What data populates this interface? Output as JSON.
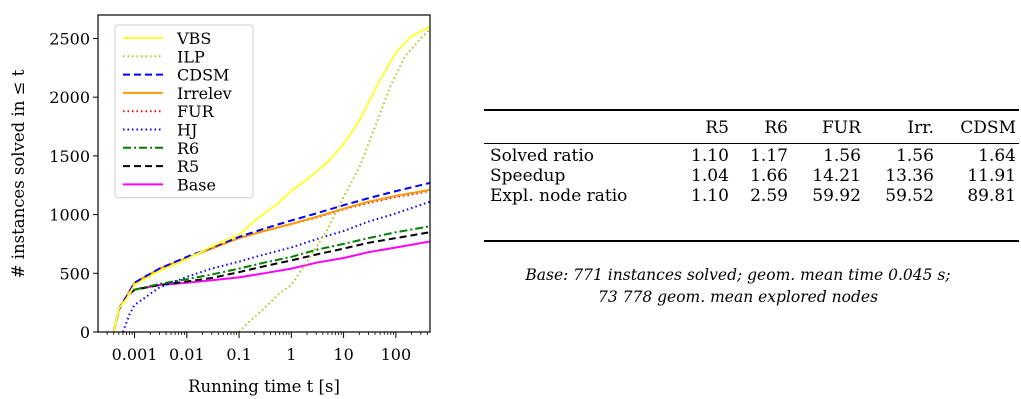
{
  "chart_data": {
    "type": "line",
    "xlabel": "Running time t [s]",
    "ylabel": "# instances solved in ≤ t",
    "xscale": "log",
    "xlim": [
      0.0002,
      450
    ],
    "ylim": [
      0,
      2700
    ],
    "xticks": [
      {
        "value": 0.001,
        "label": "0.001"
      },
      {
        "value": 0.01,
        "label": "0.01"
      },
      {
        "value": 0.1,
        "label": "0.1"
      },
      {
        "value": 1,
        "label": "1"
      },
      {
        "value": 10,
        "label": "10"
      },
      {
        "value": 100,
        "label": "100"
      }
    ],
    "yticks": [
      0,
      500,
      1000,
      1500,
      2000,
      2500
    ],
    "legend_position": "top-left",
    "series": [
      {
        "name": "VBS",
        "color": "#ffff33",
        "dash": "solid",
        "points": [
          [
            0.0004,
            0
          ],
          [
            0.0005,
            200
          ],
          [
            0.0007,
            280
          ],
          [
            0.001,
            400
          ],
          [
            0.003,
            520
          ],
          [
            0.01,
            620
          ],
          [
            0.03,
            730
          ],
          [
            0.1,
            830
          ],
          [
            0.2,
            950
          ],
          [
            0.5,
            1080
          ],
          [
            1,
            1200
          ],
          [
            2,
            1300
          ],
          [
            5,
            1450
          ],
          [
            10,
            1600
          ],
          [
            20,
            1800
          ],
          [
            50,
            2150
          ],
          [
            100,
            2380
          ],
          [
            200,
            2520
          ],
          [
            450,
            2600
          ]
        ]
      },
      {
        "name": "ILP",
        "color": "#bcbd22",
        "dash": "dotted",
        "points": [
          [
            0.1,
            0
          ],
          [
            0.15,
            80
          ],
          [
            0.3,
            200
          ],
          [
            0.6,
            330
          ],
          [
            1,
            400
          ],
          [
            2,
            600
          ],
          [
            5,
            880
          ],
          [
            10,
            1150
          ],
          [
            20,
            1400
          ],
          [
            40,
            1750
          ],
          [
            80,
            2100
          ],
          [
            150,
            2350
          ],
          [
            300,
            2500
          ],
          [
            450,
            2580
          ]
        ]
      },
      {
        "name": "CDSM",
        "color": "#0000ff",
        "dash": "dashed",
        "points": [
          [
            0.0004,
            0
          ],
          [
            0.0005,
            200
          ],
          [
            0.0007,
            300
          ],
          [
            0.001,
            420
          ],
          [
            0.003,
            540
          ],
          [
            0.01,
            640
          ],
          [
            0.03,
            720
          ],
          [
            0.1,
            810
          ],
          [
            0.3,
            880
          ],
          [
            1,
            950
          ],
          [
            3,
            1010
          ],
          [
            10,
            1080
          ],
          [
            30,
            1140
          ],
          [
            100,
            1200
          ],
          [
            450,
            1270
          ]
        ]
      },
      {
        "name": "Irrelev",
        "color": "#ff9900",
        "dash": "solid",
        "points": [
          [
            0.0004,
            0
          ],
          [
            0.0005,
            200
          ],
          [
            0.0007,
            300
          ],
          [
            0.001,
            420
          ],
          [
            0.003,
            540
          ],
          [
            0.01,
            630
          ],
          [
            0.03,
            710
          ],
          [
            0.1,
            800
          ],
          [
            0.3,
            860
          ],
          [
            1,
            920
          ],
          [
            3,
            980
          ],
          [
            10,
            1050
          ],
          [
            30,
            1110
          ],
          [
            100,
            1160
          ],
          [
            450,
            1210
          ]
        ]
      },
      {
        "name": "FUR",
        "color": "#ff0000",
        "dash": "dotted",
        "points": [
          [
            0.0004,
            0
          ],
          [
            0.0005,
            200
          ],
          [
            0.0007,
            300
          ],
          [
            0.001,
            420
          ],
          [
            0.003,
            540
          ],
          [
            0.01,
            630
          ],
          [
            0.03,
            710
          ],
          [
            0.1,
            800
          ],
          [
            0.3,
            860
          ],
          [
            1,
            920
          ],
          [
            3,
            975
          ],
          [
            10,
            1045
          ],
          [
            30,
            1100
          ],
          [
            100,
            1150
          ],
          [
            450,
            1200
          ]
        ]
      },
      {
        "name": "HJ",
        "color": "#0000ff",
        "dash": "dotted",
        "points": [
          [
            0.0006,
            0
          ],
          [
            0.0008,
            150
          ],
          [
            0.001,
            230
          ],
          [
            0.003,
            380
          ],
          [
            0.01,
            470
          ],
          [
            0.03,
            540
          ],
          [
            0.1,
            600
          ],
          [
            0.3,
            660
          ],
          [
            1,
            720
          ],
          [
            3,
            790
          ],
          [
            10,
            860
          ],
          [
            30,
            940
          ],
          [
            100,
            1010
          ],
          [
            450,
            1110
          ]
        ]
      },
      {
        "name": "R6",
        "color": "#008000",
        "dash": "dashdot",
        "points": [
          [
            0.0004,
            0
          ],
          [
            0.0005,
            190
          ],
          [
            0.0007,
            300
          ],
          [
            0.001,
            360
          ],
          [
            0.003,
            410
          ],
          [
            0.01,
            450
          ],
          [
            0.03,
            490
          ],
          [
            0.1,
            540
          ],
          [
            0.3,
            590
          ],
          [
            1,
            640
          ],
          [
            3,
            700
          ],
          [
            10,
            750
          ],
          [
            30,
            800
          ],
          [
            100,
            850
          ],
          [
            450,
            900
          ]
        ]
      },
      {
        "name": "R5",
        "color": "#000000",
        "dash": "dashed",
        "points": [
          [
            0.0004,
            0
          ],
          [
            0.0005,
            190
          ],
          [
            0.0007,
            300
          ],
          [
            0.001,
            360
          ],
          [
            0.003,
            400
          ],
          [
            0.01,
            430
          ],
          [
            0.03,
            460
          ],
          [
            0.1,
            510
          ],
          [
            0.3,
            560
          ],
          [
            1,
            610
          ],
          [
            3,
            660
          ],
          [
            10,
            710
          ],
          [
            30,
            760
          ],
          [
            100,
            800
          ],
          [
            450,
            850
          ]
        ]
      },
      {
        "name": "Base",
        "color": "#ff00ff",
        "dash": "solid",
        "points": [
          [
            0.0004,
            0
          ],
          [
            0.0005,
            190
          ],
          [
            0.0007,
            300
          ],
          [
            0.001,
            360
          ],
          [
            0.003,
            400
          ],
          [
            0.01,
            420
          ],
          [
            0.03,
            440
          ],
          [
            0.1,
            465
          ],
          [
            0.3,
            500
          ],
          [
            1,
            540
          ],
          [
            3,
            590
          ],
          [
            10,
            630
          ],
          [
            30,
            680
          ],
          [
            100,
            720
          ],
          [
            450,
            771
          ]
        ]
      }
    ]
  },
  "table": {
    "columns": [
      "",
      "R5",
      "R6",
      "FUR",
      "Irr.",
      "CDSM"
    ],
    "rows": [
      {
        "label": "Solved ratio",
        "values": [
          "1.10",
          "1.17",
          "1.56",
          "1.56",
          "1.64"
        ]
      },
      {
        "label": "Speedup",
        "values": [
          "1.04",
          "1.66",
          "14.21",
          "13.36",
          "11.91"
        ]
      },
      {
        "label": "Expl. node ratio",
        "values": [
          "1.10",
          "2.59",
          "59.92",
          "59.52",
          "89.81"
        ]
      }
    ]
  },
  "caption": {
    "line1": "Base: 771 instances solved; geom. mean time 0.045 s;",
    "line2": "73 778 geom. mean explored nodes"
  }
}
